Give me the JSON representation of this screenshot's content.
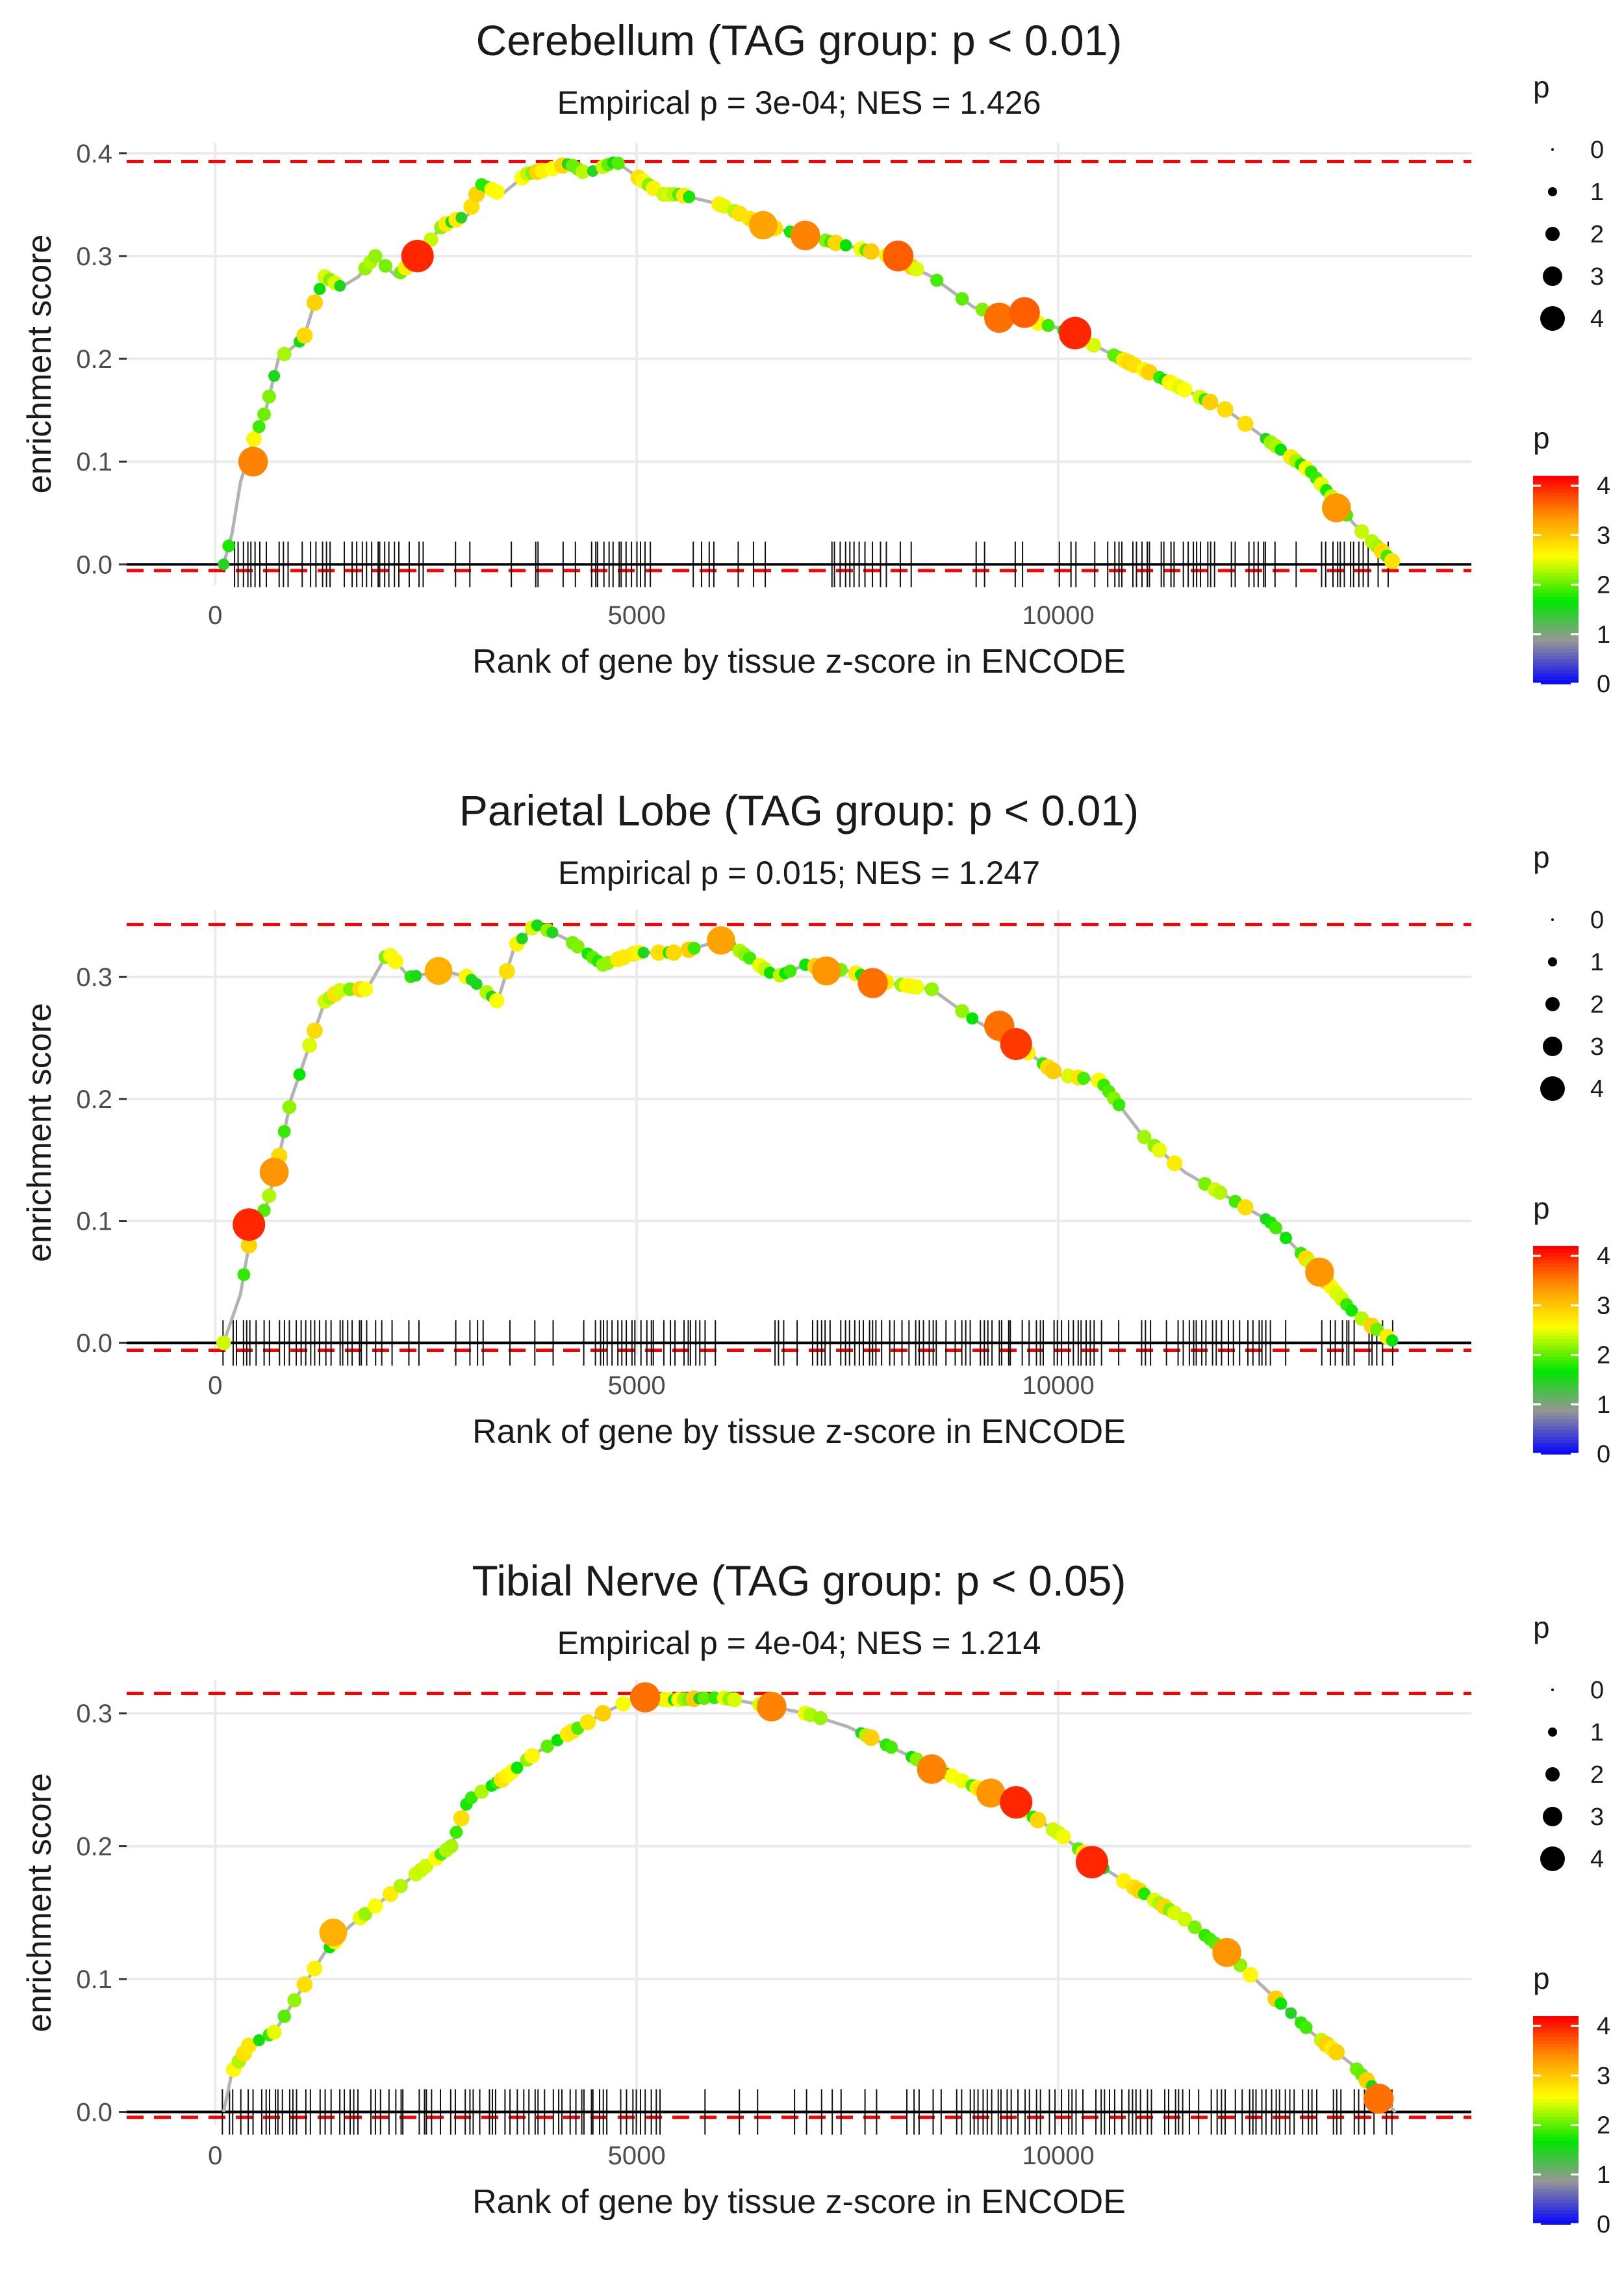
{
  "chart_data": [
    {
      "type": "line",
      "title": "Cerebellum (TAG group: p < 0.01)",
      "subtitle": "Empirical p = 3e-04; NES = 1.426",
      "xlabel": "Rank of gene by tissue z-score in ENCODE",
      "ylabel": "enrichment score",
      "xlim": [
        -1050,
        14900
      ],
      "ylim": [
        -0.02,
        0.41
      ],
      "x_ticks": [
        0,
        5000,
        10000
      ],
      "x_tick_labels": [
        "0",
        "5000",
        "10000"
      ],
      "y_ticks": [
        0.0,
        0.1,
        0.2,
        0.3,
        0.4
      ],
      "y_tick_labels": [
        "0.0",
        "0.1",
        "0.2",
        "0.3",
        "0.4"
      ],
      "max_es": 0.392,
      "min_es": -0.006,
      "curve": [
        [
          100,
          0
        ],
        [
          200,
          0.03
        ],
        [
          300,
          0.08
        ],
        [
          450,
          0.12
        ],
        [
          600,
          0.15
        ],
        [
          750,
          0.2
        ],
        [
          900,
          0.21
        ],
        [
          1050,
          0.22
        ],
        [
          1200,
          0.26
        ],
        [
          1300,
          0.28
        ],
        [
          1500,
          0.27
        ],
        [
          1700,
          0.28
        ],
        [
          1900,
          0.3
        ],
        [
          2150,
          0.28
        ],
        [
          2400,
          0.3
        ],
        [
          2700,
          0.33
        ],
        [
          3000,
          0.34
        ],
        [
          3150,
          0.37
        ],
        [
          3400,
          0.36
        ],
        [
          3700,
          0.38
        ],
        [
          4000,
          0.385
        ],
        [
          4200,
          0.39
        ],
        [
          4400,
          0.38
        ],
        [
          4750,
          0.392
        ],
        [
          5300,
          0.36
        ],
        [
          5500,
          0.36
        ],
        [
          6000,
          0.35
        ],
        [
          6500,
          0.33
        ],
        [
          7000,
          0.32
        ],
        [
          7500,
          0.31
        ],
        [
          8000,
          0.3
        ],
        [
          8500,
          0.28
        ],
        [
          9000,
          0.25
        ],
        [
          9500,
          0.24
        ],
        [
          10000,
          0.23
        ],
        [
          10500,
          0.21
        ],
        [
          11000,
          0.19
        ],
        [
          11500,
          0.17
        ],
        [
          12000,
          0.15
        ],
        [
          12500,
          0.12
        ],
        [
          13000,
          0.09
        ],
        [
          13500,
          0.04
        ],
        [
          14000,
          0
        ]
      ],
      "highlighted_points": [
        {
          "x": 450,
          "y": 0.1,
          "p": 3.5
        },
        {
          "x": 2400,
          "y": 0.3,
          "p": 4
        },
        {
          "x": 6500,
          "y": 0.33,
          "p": 3.3
        },
        {
          "x": 7000,
          "y": 0.32,
          "p": 3.5
        },
        {
          "x": 8100,
          "y": 0.3,
          "p": 3.7
        },
        {
          "x": 9300,
          "y": 0.24,
          "p": 3.6
        },
        {
          "x": 9600,
          "y": 0.245,
          "p": 3.7
        },
        {
          "x": 10200,
          "y": 0.225,
          "p": 4
        },
        {
          "x": 13300,
          "y": 0.055,
          "p": 3.4
        }
      ],
      "gene_ticks_dense_ranges": [
        [
          150,
          2450
        ],
        [
          4400,
          5100
        ],
        [
          7300,
          8000
        ],
        [
          10500,
          12500
        ],
        [
          13100,
          13800
        ]
      ],
      "size_legend": {
        "title": "p",
        "labels": [
          "0",
          "1",
          "2",
          "3",
          "4"
        ]
      },
      "color_legend": {
        "title": "p",
        "labels": [
          "0",
          "1",
          "2",
          "3",
          "4"
        ],
        "min": 0,
        "max": 4.2
      }
    },
    {
      "type": "line",
      "title": "Parietal Lobe (TAG group: p < 0.01)",
      "subtitle": "Empirical p = 0.015; NES = 1.247",
      "xlabel": "Rank of gene by tissue z-score in ENCODE",
      "ylabel": "enrichment score",
      "xlim": [
        -1050,
        14900
      ],
      "ylim": [
        -0.01,
        0.355
      ],
      "x_ticks": [
        0,
        5000,
        10000
      ],
      "x_tick_labels": [
        "0",
        "5000",
        "10000"
      ],
      "y_ticks": [
        0.0,
        0.1,
        0.2,
        0.3
      ],
      "y_tick_labels": [
        "0.0",
        "0.1",
        "0.2",
        "0.3"
      ],
      "max_es": 0.343,
      "min_es": -0.006,
      "curve": [
        [
          100,
          0
        ],
        [
          300,
          0.04
        ],
        [
          450,
          0.1
        ],
        [
          600,
          0.11
        ],
        [
          750,
          0.15
        ],
        [
          900,
          0.2
        ],
        [
          1100,
          0.24
        ],
        [
          1300,
          0.28
        ],
        [
          1500,
          0.29
        ],
        [
          1800,
          0.29
        ],
        [
          2050,
          0.32
        ],
        [
          2300,
          0.3
        ],
        [
          2700,
          0.305
        ],
        [
          3000,
          0.3
        ],
        [
          3350,
          0.28
        ],
        [
          3550,
          0.325
        ],
        [
          3800,
          0.343
        ],
        [
          4200,
          0.33
        ],
        [
          4600,
          0.31
        ],
        [
          5000,
          0.32
        ],
        [
          5500,
          0.32
        ],
        [
          6000,
          0.33
        ],
        [
          6150,
          0.325
        ],
        [
          6650,
          0.3
        ],
        [
          7000,
          0.31
        ],
        [
          7500,
          0.305
        ],
        [
          8000,
          0.295
        ],
        [
          8500,
          0.29
        ],
        [
          9000,
          0.265
        ],
        [
          9500,
          0.245
        ],
        [
          10000,
          0.22
        ],
        [
          10500,
          0.215
        ],
        [
          11000,
          0.17
        ],
        [
          11500,
          0.14
        ],
        [
          12000,
          0.12
        ],
        [
          12500,
          0.1
        ],
        [
          13000,
          0.065
        ],
        [
          13500,
          0.025
        ],
        [
          14000,
          0
        ]
      ],
      "highlighted_points": [
        {
          "x": 400,
          "y": 0.097,
          "p": 4
        },
        {
          "x": 700,
          "y": 0.14,
          "p": 3.4
        },
        {
          "x": 2650,
          "y": 0.305,
          "p": 3.2
        },
        {
          "x": 6000,
          "y": 0.33,
          "p": 3.3
        },
        {
          "x": 7250,
          "y": 0.305,
          "p": 3.4
        },
        {
          "x": 7800,
          "y": 0.295,
          "p": 3.6
        },
        {
          "x": 9300,
          "y": 0.26,
          "p": 3.6
        },
        {
          "x": 9500,
          "y": 0.245,
          "p": 3.9
        },
        {
          "x": 13100,
          "y": 0.058,
          "p": 3.4
        }
      ],
      "gene_ticks_dense_ranges": [
        [
          200,
          2100
        ],
        [
          4500,
          5900
        ],
        [
          6600,
          10500
        ],
        [
          11200,
          12600
        ],
        [
          13200,
          13800
        ]
      ],
      "size_legend": {
        "title": "p",
        "labels": [
          "0",
          "1",
          "2",
          "3",
          "4"
        ]
      },
      "color_legend": {
        "title": "p",
        "labels": [
          "0",
          "1",
          "2",
          "3",
          "4"
        ],
        "min": 0,
        "max": 4.2
      }
    },
    {
      "type": "line",
      "title": "Tibial Nerve (TAG group: p < 0.05)",
      "subtitle": "Empirical p = 4e-04; NES = 1.214",
      "xlabel": "Rank of gene by tissue z-score in ENCODE",
      "ylabel": "enrichment score",
      "xlim": [
        -1050,
        14900
      ],
      "ylim": [
        -0.01,
        0.325
      ],
      "x_ticks": [
        0,
        5000,
        10000
      ],
      "x_tick_labels": [
        "0",
        "5000",
        "10000"
      ],
      "y_ticks": [
        0.0,
        0.1,
        0.2,
        0.3
      ],
      "y_tick_labels": [
        "0.0",
        "0.1",
        "0.2",
        "0.3"
      ],
      "max_es": 0.315,
      "min_es": -0.004,
      "curve": [
        [
          100,
          0
        ],
        [
          200,
          0.03
        ],
        [
          400,
          0.05
        ],
        [
          700,
          0.06
        ],
        [
          1000,
          0.09
        ],
        [
          1300,
          0.12
        ],
        [
          1600,
          0.14
        ],
        [
          2000,
          0.16
        ],
        [
          2400,
          0.18
        ],
        [
          2800,
          0.2
        ],
        [
          3000,
          0.235
        ],
        [
          3400,
          0.25
        ],
        [
          3800,
          0.27
        ],
        [
          4200,
          0.285
        ],
        [
          4600,
          0.3
        ],
        [
          5000,
          0.312
        ],
        [
          5400,
          0.31
        ],
        [
          6000,
          0.312
        ],
        [
          6600,
          0.305
        ],
        [
          7000,
          0.3
        ],
        [
          7500,
          0.29
        ],
        [
          8000,
          0.275
        ],
        [
          8500,
          0.26
        ],
        [
          9000,
          0.245
        ],
        [
          9500,
          0.23
        ],
        [
          10000,
          0.21
        ],
        [
          10500,
          0.185
        ],
        [
          11000,
          0.165
        ],
        [
          11500,
          0.145
        ],
        [
          12000,
          0.12
        ],
        [
          12500,
          0.09
        ],
        [
          13000,
          0.06
        ],
        [
          13500,
          0.035
        ],
        [
          14000,
          0
        ]
      ],
      "highlighted_points": [
        {
          "x": 1400,
          "y": 0.135,
          "p": 3.2
        },
        {
          "x": 5100,
          "y": 0.312,
          "p": 3.6
        },
        {
          "x": 6600,
          "y": 0.305,
          "p": 3.5
        },
        {
          "x": 8500,
          "y": 0.258,
          "p": 3.5
        },
        {
          "x": 9200,
          "y": 0.24,
          "p": 3.4
        },
        {
          "x": 9500,
          "y": 0.233,
          "p": 4
        },
        {
          "x": 10400,
          "y": 0.188,
          "p": 4
        },
        {
          "x": 12000,
          "y": 0.12,
          "p": 3.4
        },
        {
          "x": 13800,
          "y": 0.01,
          "p": 3.6
        }
      ],
      "gene_ticks_dense_ranges": [
        [
          100,
          5200
        ],
        [
          8800,
          13800
        ]
      ],
      "size_legend": {
        "title": "p",
        "labels": [
          "0",
          "1",
          "2",
          "3",
          "4"
        ]
      },
      "color_legend": {
        "title": "p",
        "labels": [
          "0",
          "1",
          "2",
          "3",
          "4"
        ],
        "min": 0,
        "max": 4.2
      }
    }
  ]
}
